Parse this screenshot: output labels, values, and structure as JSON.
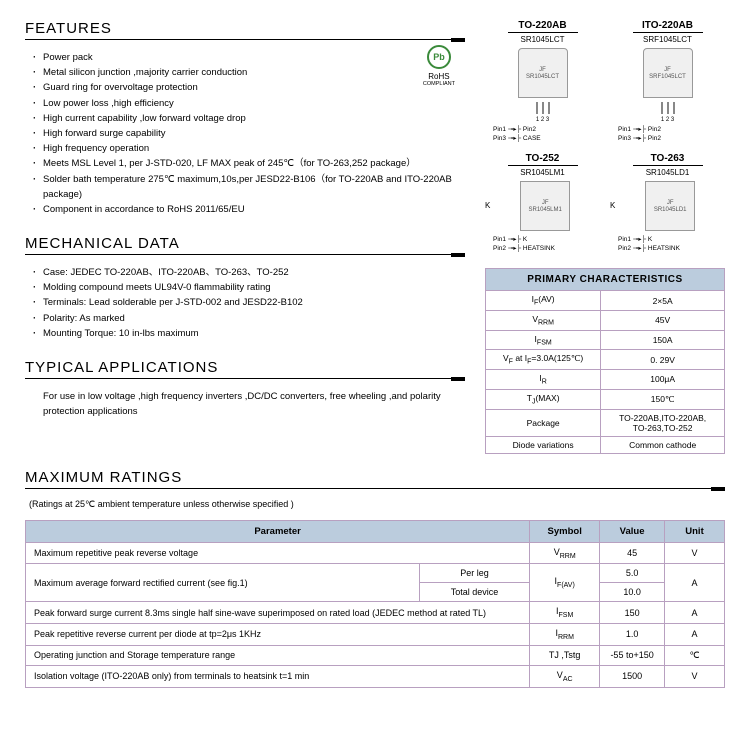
{
  "rohs": {
    "symbol": "Pb",
    "label": "RoHS",
    "sub": "COMPLIANT"
  },
  "features": {
    "title": "FEATURES",
    "items": [
      "Power pack",
      "Metal silicon junction ,majority carrier conduction",
      "Guard ring for overvoltage protection",
      "Low power loss ,high efficiency",
      "High current capability ,low forward voltage drop",
      "High forward surge capability",
      "High frequency operation",
      "Meets MSL Level 1,  per J-STD-020, LF MAX peak of 245℃（for TO-263,252 package）",
      "Solder bath temperature 275℃ maximum,10s,per JESD22-B106（for TO-220AB and ITO-220AB package)",
      "Component in accordance to RoHS 2011/65/EU"
    ]
  },
  "mechanical": {
    "title": "MECHANICAL DATA",
    "items": [
      "Case: JEDEC TO-220AB、ITO-220AB、TO-263、TO-252",
      "Molding compound meets UL94V-0 flammability rating",
      "Terminals: Lead solderable per J-STD-002 and JESD22-B102",
      "Polarity: As marked",
      "Mounting Torque: 10 in-lbs maximum"
    ]
  },
  "applications": {
    "title": "TYPICAL  APPLICATIONS",
    "text": "For use in low voltage ,high frequency inverters ,DC/DC converters, free wheeling ,and polarity protection applications"
  },
  "packages": [
    {
      "type": "TO-220AB",
      "part": "SR1045LCT",
      "style": "to220",
      "pins_nums": "1  2  3",
      "pins": "Pin1 ⊸▸├ Pin2<br>Pin3 ⊸▸├ CASE"
    },
    {
      "type": "ITO-220AB",
      "part": "SRF1045LCT",
      "style": "to220",
      "pins_nums": "1  2  3",
      "pins": "Pin1 ⊸▸├ Pin2<br>Pin3 ⊸▸├ Pin2"
    },
    {
      "type": "TO-252",
      "part": "SR1045LM1",
      "style": "smd",
      "k": "K",
      "pins": "Pin1 ⊸▸├ K<br>Pin2 ⊸▸├ HEATSINK"
    },
    {
      "type": "TO-263",
      "part": "SR1045LD1",
      "style": "smd",
      "k": "K",
      "pins": "Pin1 ⊸▸├ K<br>Pin2 ⊸▸├ HEATSINK"
    }
  ],
  "primary": {
    "title": "PRIMARY CHARACTERISTICS",
    "rows": [
      {
        "k": "I<sub>F</sub>(AV)",
        "v": "2×5A"
      },
      {
        "k": "V<sub>RRM</sub>",
        "v": "45V"
      },
      {
        "k": "I<sub>FSM</sub>",
        "v": "150A"
      },
      {
        "k": "V<sub>F</sub> at I<sub>F</sub>=3.0A(125℃)",
        "v": "0. 29V"
      },
      {
        "k": "I<sub>R</sub>",
        "v": "100μA"
      },
      {
        "k": "T<sub>J</sub>(MAX)",
        "v": "150℃"
      },
      {
        "k": "Package",
        "v": "TO-220AB,ITO-220AB,<br>TO-263,TO-252"
      },
      {
        "k": "Diode variations",
        "v": "Common cathode"
      }
    ]
  },
  "ratings": {
    "title": "MAXIMUM RATINGS",
    "note": "(Ratings at 25℃ ambient temperature unless otherwise specified )",
    "headers": [
      "Parameter",
      "Symbol",
      "Value",
      "Unit"
    ],
    "rows": [
      {
        "param": "Maximum repetitive peak reverse voltage",
        "cond": "",
        "sym": "V<sub>RRM</sub>",
        "val": "45",
        "unit": "V"
      },
      {
        "param": "Maximum average forward rectified current (see fig.1)",
        "cond_a": "Per leg",
        "cond_b": "Total device",
        "sym": "I<sub>F(AV)</sub>",
        "val_a": "5.0",
        "val_b": "10.0",
        "unit": "A",
        "rowspan": true
      },
      {
        "param": "Peak forward surge current 8.3ms single half sine-wave superimposed on rated load (JEDEC method at rated TL)",
        "sym": "I<sub>FSM</sub>",
        "val": "150",
        "unit": "A"
      },
      {
        "param": "Peak repetitive reverse current per diode at tp=2μs 1KHz",
        "sym": "I<sub>RRM</sub>",
        "val": "1.0",
        "unit": "A"
      },
      {
        "param": "Operating junction and Storage temperature range",
        "sym": "TJ ,Tstg",
        "val": "-55 to+150",
        "unit": "℃"
      },
      {
        "param": "Isolation voltage (ITO-220AB only) from terminals to heatsink t=1 min",
        "sym": "V<sub>AC</sub>",
        "val": "1500",
        "unit": "V"
      }
    ]
  },
  "colors": {
    "table_border": "#b8a0c0",
    "table_header_bg": "#bcd"
  }
}
